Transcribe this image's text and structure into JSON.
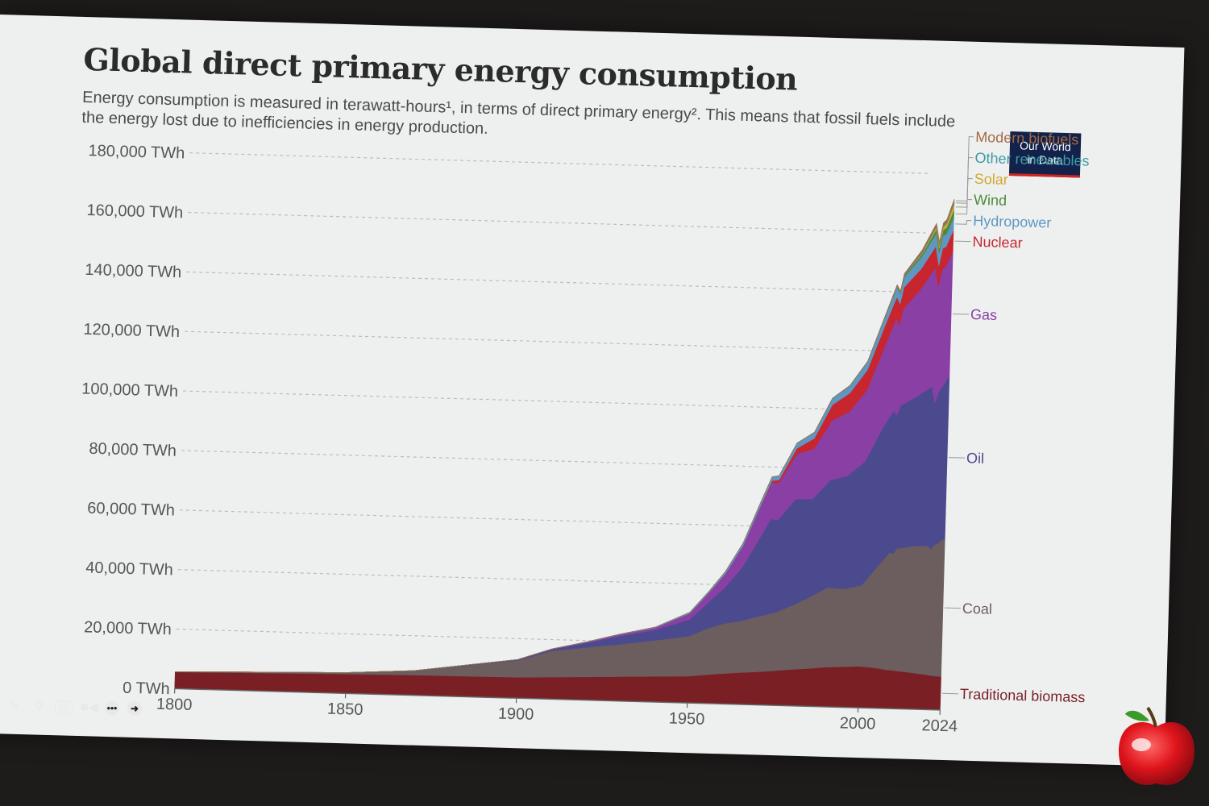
{
  "chart_data": {
    "type": "area",
    "stacked": true,
    "title": "Global direct primary energy consumption",
    "subtitle": "Energy consumption is measured in terawatt-hours¹, in terms of direct primary energy². This means that fossil fuels include the energy lost due to inefficiencies in energy production.",
    "xlabel": "",
    "ylabel": "",
    "xlim": [
      1800,
      2024
    ],
    "ylim": [
      0,
      180000
    ],
    "x_ticks": [
      "1800",
      "1850",
      "1900",
      "1950",
      "2000",
      "2024"
    ],
    "y_ticks": [
      "0 TWh",
      "20,000 TWh",
      "40,000 TWh",
      "60,000 TWh",
      "80,000 TWh",
      "100,000 TWh",
      "120,000 TWh",
      "140,000 TWh",
      "160,000 TWh",
      "180,000 TWh"
    ],
    "grid": "horizontal dashed",
    "legend": "right, labels at series ends",
    "x": [
      1800,
      1850,
      1870,
      1900,
      1910,
      1920,
      1930,
      1940,
      1950,
      1955,
      1960,
      1965,
      1970,
      1973,
      1975,
      1980,
      1985,
      1990,
      1995,
      2000,
      2005,
      2008,
      2009,
      2010,
      2015,
      2019,
      2020,
      2021,
      2022,
      2023,
      2024
    ],
    "series": [
      {
        "name": "Traditional biomass",
        "color": "#7a1f24",
        "values": [
          5600,
          6500,
          6800,
          7000,
          7400,
          7800,
          8200,
          8600,
          9000,
          9600,
          10200,
          10700,
          11100,
          11400,
          11600,
          12200,
          12700,
          13300,
          13600,
          13900,
          13500,
          13000,
          12900,
          12800,
          12300,
          11800,
          11600,
          11500,
          11400,
          11300,
          11200
        ]
      },
      {
        "name": "Coal",
        "color": "#6c5d5f",
        "values": [
          100,
          500,
          1500,
          5700,
          8800,
          9900,
          10900,
          12100,
          13400,
          15500,
          16800,
          17400,
          18600,
          19200,
          19600,
          21600,
          24000,
          26800,
          26200,
          27300,
          34800,
          39500,
          39200,
          41000,
          42500,
          43200,
          42400,
          43900,
          44500,
          45800,
          46300
        ]
      },
      {
        "name": "Oil",
        "color": "#4b4a8f",
        "values": [
          0,
          0,
          10,
          200,
          500,
          1500,
          2800,
          3500,
          5600,
          8500,
          12000,
          18000,
          26600,
          32000,
          31000,
          35600,
          33000,
          36000,
          38000,
          41500,
          46000,
          47500,
          46500,
          48000,
          50500,
          53500,
          49000,
          51500,
          52500,
          53500,
          54700
        ]
      },
      {
        "name": "Gas",
        "color": "#8a3fa5",
        "values": [
          0,
          0,
          0,
          70,
          140,
          230,
          500,
          700,
          2100,
          3000,
          4600,
          7000,
          10800,
          12200,
          12500,
          15200,
          16800,
          20000,
          21500,
          24000,
          27600,
          31000,
          30300,
          32500,
          36000,
          40000,
          39200,
          41000,
          40500,
          41000,
          41800
        ]
      },
      {
        "name": "Nuclear",
        "color": "#c7262e",
        "values": [
          0,
          0,
          0,
          0,
          0,
          0,
          0,
          0,
          0,
          0,
          10,
          70,
          200,
          600,
          1000,
          1900,
          3500,
          5300,
          6200,
          6800,
          7300,
          7200,
          7100,
          7200,
          6800,
          7200,
          6900,
          7100,
          6700,
          7000,
          7100
        ]
      },
      {
        "name": "Hydropower",
        "color": "#5f97c3",
        "values": [
          0,
          0,
          0,
          20,
          50,
          100,
          160,
          250,
          340,
          460,
          690,
          920,
          1170,
          1300,
          1400,
          1700,
          1950,
          2100,
          2400,
          2600,
          2900,
          3200,
          3250,
          3400,
          3900,
          4200,
          4300,
          4300,
          4300,
          4250,
          4400
        ]
      },
      {
        "name": "Wind",
        "color": "#4c8a3c",
        "values": [
          0,
          0,
          0,
          0,
          0,
          0,
          0,
          0,
          0,
          0,
          0,
          0,
          0,
          0,
          0,
          0,
          1,
          4,
          8,
          31,
          104,
          221,
          277,
          342,
          828,
          1420,
          1590,
          1860,
          2100,
          2330,
          2500
        ]
      },
      {
        "name": "Solar",
        "color": "#d2a82c",
        "values": [
          0,
          0,
          0,
          0,
          0,
          0,
          0,
          0,
          0,
          0,
          0,
          0,
          0,
          0,
          0,
          0,
          0,
          0,
          0,
          1,
          4,
          12,
          20,
          34,
          256,
          700,
          850,
          1030,
          1300,
          1650,
          2100
        ]
      },
      {
        "name": "Other renewables",
        "color": "#3d9aa6",
        "values": [
          0,
          0,
          0,
          0,
          0,
          0,
          0,
          0,
          0,
          0,
          5,
          10,
          20,
          30,
          40,
          60,
          90,
          130,
          170,
          210,
          260,
          290,
          300,
          320,
          420,
          470,
          470,
          500,
          500,
          510,
          520
        ]
      },
      {
        "name": "Modern biofuels",
        "color": "#a46a46",
        "values": [
          0,
          0,
          0,
          0,
          0,
          0,
          0,
          0,
          0,
          0,
          0,
          0,
          0,
          0,
          0,
          30,
          60,
          70,
          70,
          110,
          250,
          460,
          500,
          550,
          700,
          850,
          820,
          870,
          920,
          960,
          1000
        ]
      }
    ]
  },
  "logo": {
    "line1": "Our World",
    "line2": "in Data"
  },
  "toolbar": {
    "pencil_icon": "pencil-icon",
    "zoom_icon": "magnifier-icon",
    "cc_label": "CC",
    "video_icon": "video-camera-icon",
    "more_icon": "more-icon",
    "next_icon": "arrow-right-icon"
  }
}
